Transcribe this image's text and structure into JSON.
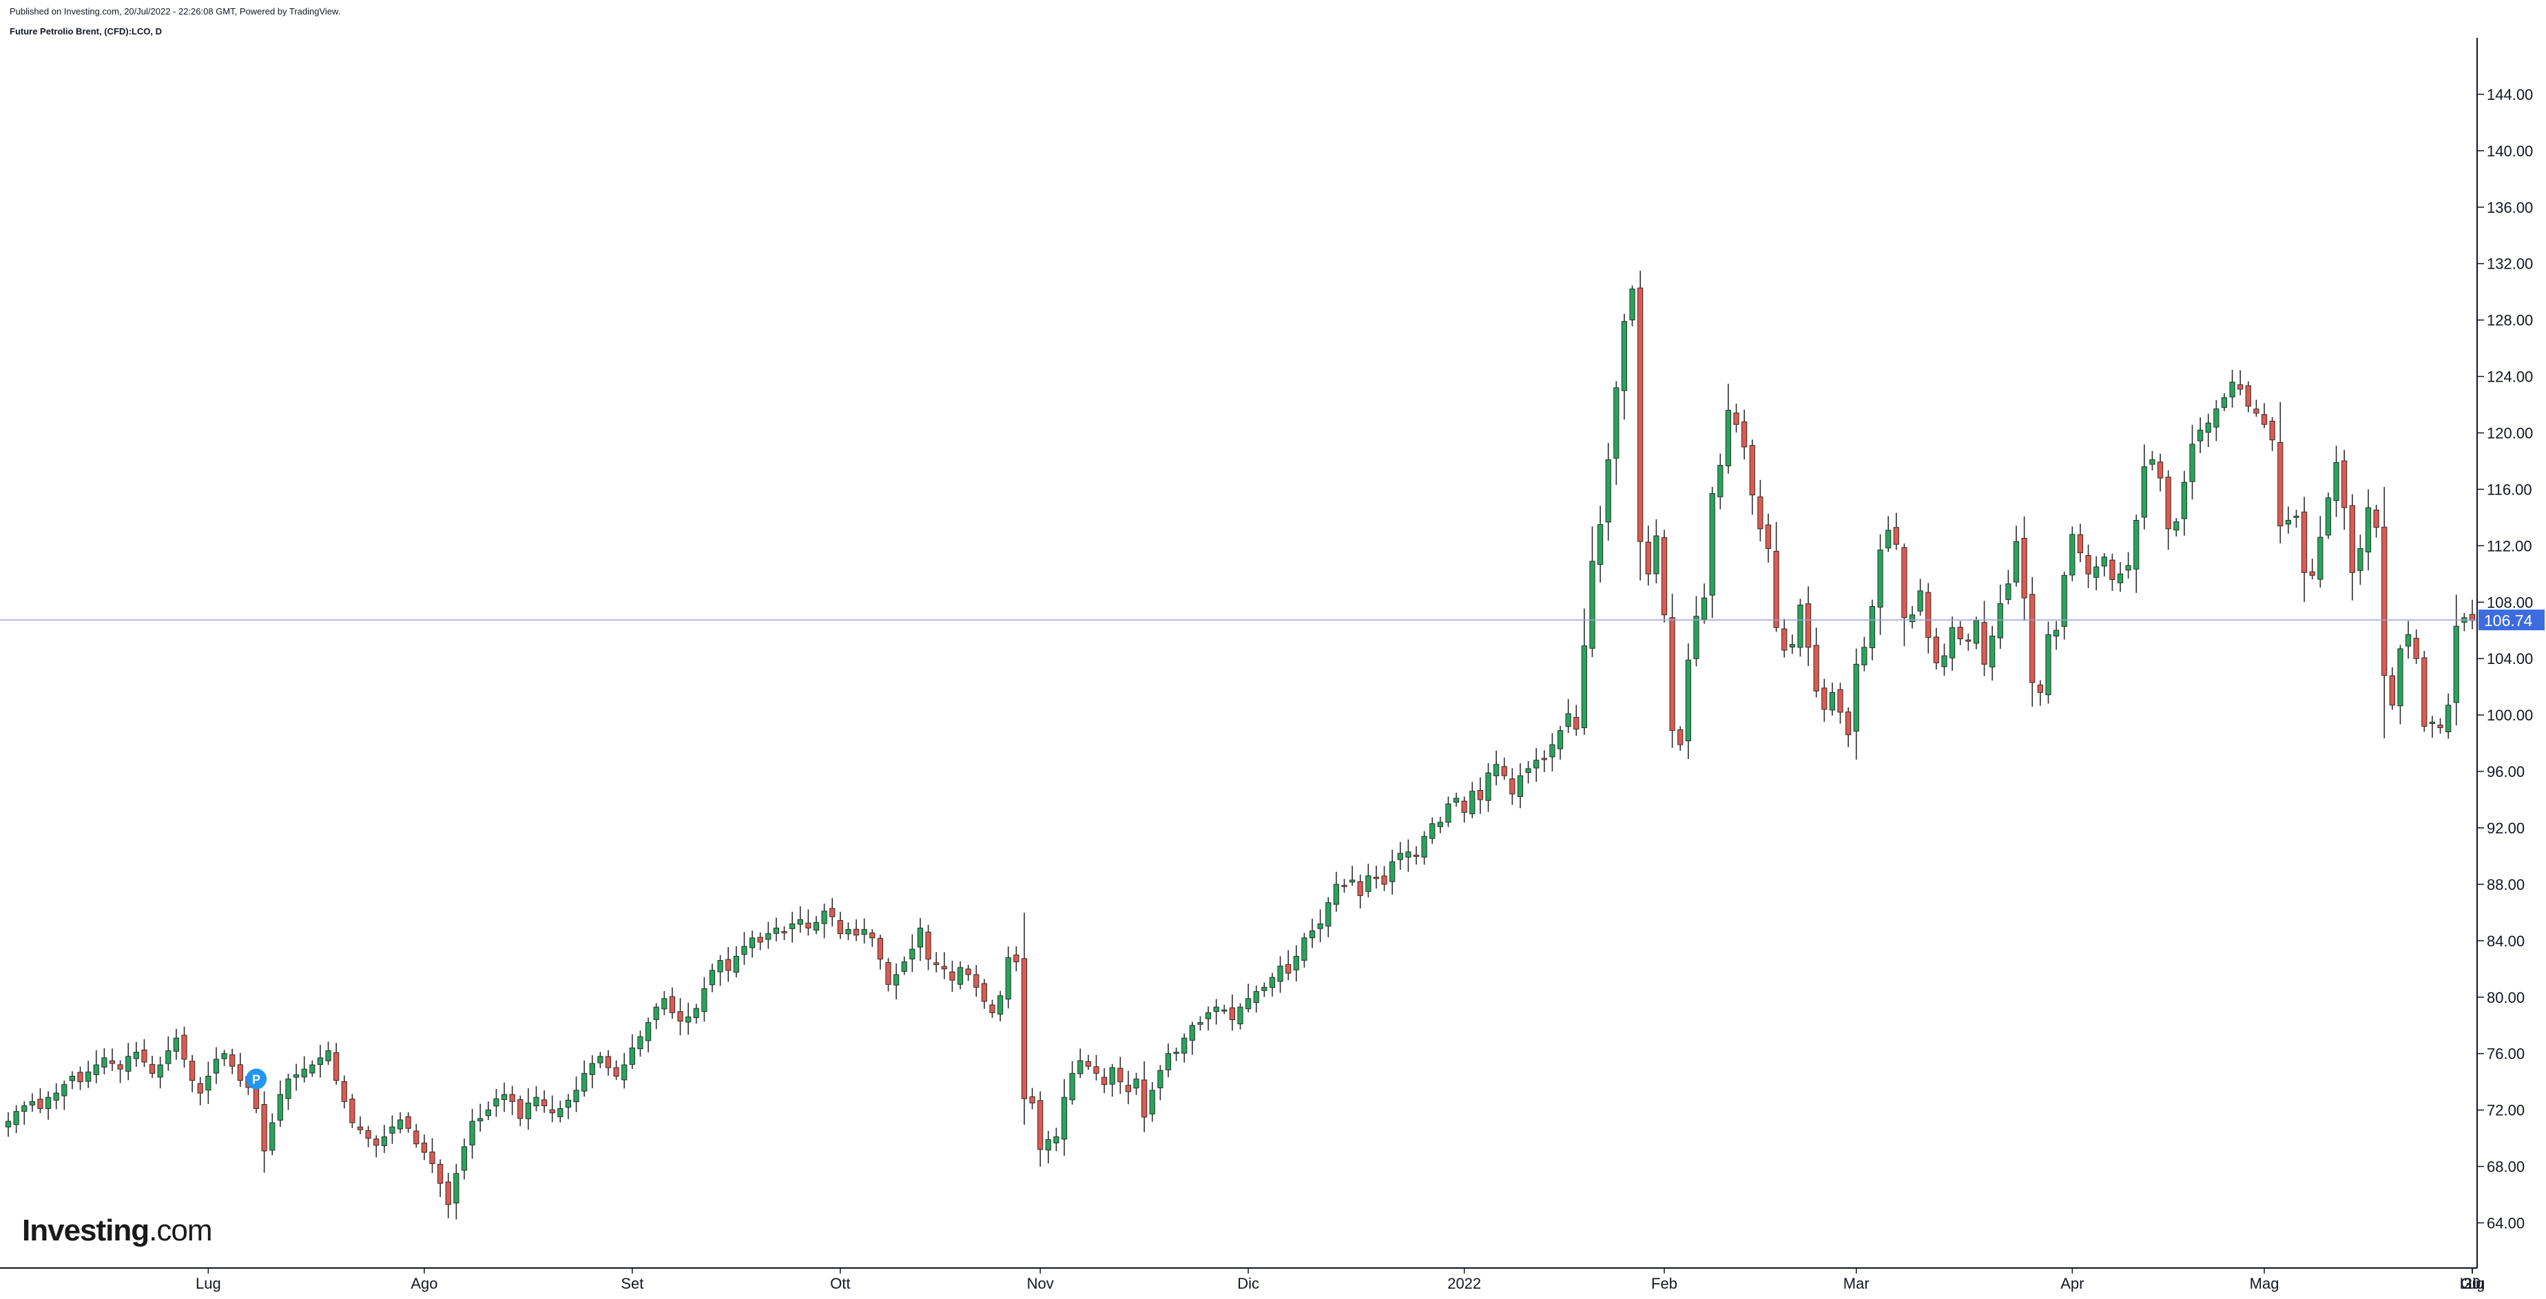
{
  "header": {
    "published": "Published on Investing.com, 20/Jul/2022 - 22:26:08 GMT, Powered by TradingView.",
    "symbol": "Future Petrolio Brent, (CFD):LCO, D"
  },
  "logo": {
    "brand": "Investing",
    "tld": ".com"
  },
  "colors": {
    "up": "#26a65b",
    "down": "#e05a4f",
    "wick": "#2d2d2d",
    "price_line": "#9aa3cf",
    "price_badge": "#3d6ce0",
    "axis": "#131722",
    "event_marker": "#2196f3"
  },
  "chart_data": {
    "type": "candlestick",
    "interval": "D",
    "ylim": [
      60.8,
      148.0
    ],
    "yticks": [
      "64.00",
      "68.00",
      "72.00",
      "76.00",
      "80.00",
      "84.00",
      "88.00",
      "92.00",
      "96.00",
      "100.00",
      "104.00",
      "108.00",
      "112.00",
      "116.00",
      "120.00",
      "124.00",
      "128.00",
      "132.00",
      "136.00",
      "140.00",
      "144.00"
    ],
    "xticks": [
      "Lug",
      "Ago",
      "Set",
      "Ott",
      "Nov",
      "Dic",
      "2022",
      "Feb",
      "Mar",
      "Apr",
      "Mag",
      "Giu",
      "Lug",
      "20"
    ],
    "last_price": "106.74",
    "event_marker": {
      "label": "P",
      "close": 74.2
    },
    "series": [
      {
        "closes": [
          71.2,
          71.9,
          72.3,
          72.6,
          72.1,
          72.9,
          73.2,
          73.8,
          74.4,
          74.0,
          74.7,
          75.2,
          75.7,
          75.3,
          74.9,
          75.8,
          76.1,
          75.4,
          74.6,
          75.2,
          76.2,
          77.1,
          75.6,
          74.1,
          73.2,
          74.4,
          75.6,
          76.0,
          75.1,
          74.1,
          73.6,
          72.1,
          69.1,
          71.1,
          73.1,
          74.2,
          74.5,
          74.9,
          75.2,
          75.7,
          76.2,
          74.1,
          72.6,
          71.1,
          70.6,
          70.0,
          69.5,
          70.1,
          70.8,
          71.3,
          70.7,
          69.6,
          69.0,
          68.2,
          66.8,
          65.3,
          67.5,
          69.4,
          71.2,
          71.4,
          72.0,
          72.8,
          73.1,
          72.6,
          71.4,
          72.5,
          72.9,
          72.3,
          71.8,
          72.1,
          72.7,
          73.4,
          74.6,
          75.3,
          75.8,
          75.0,
          74.4,
          75.2,
          76.4,
          77.2,
          78.2,
          79.3,
          79.9,
          78.9,
          78.3,
          78.6,
          79.2,
          80.6,
          81.9,
          82.6,
          81.9,
          82.9,
          83.6,
          84.2,
          83.9,
          84.5,
          84.9,
          84.6,
          85.2,
          85.5,
          84.9,
          85.3,
          86.1,
          85.7,
          84.5,
          84.8,
          84.4,
          84.8,
          84.2,
          82.7,
          80.9,
          81.6,
          82.5,
          83.4,
          84.9,
          82.7,
          82.3,
          82.0,
          81.2,
          82.1,
          81.6,
          80.7,
          79.7,
          78.9,
          80.1,
          82.8,
          82.5,
          72.8,
          72.5,
          69.2,
          69.9,
          70.1,
          72.9,
          74.6,
          75.5,
          75.1,
          74.6,
          73.8,
          75.0,
          74.0,
          73.3,
          74.2,
          71.5,
          73.4,
          74.8,
          76.0,
          76.1,
          77.1,
          78.0,
          78.2,
          78.9,
          79.3,
          79.1,
          78.4,
          79.3,
          79.9,
          80.4,
          80.7,
          81.4,
          82.2,
          81.7,
          82.9,
          84.2,
          84.7,
          85.2,
          86.7,
          88.0,
          87.9,
          88.3,
          87.2,
          88.6,
          88.4,
          88.0,
          89.6,
          90.2,
          90.3,
          90.0,
          91.4,
          92.3,
          92.4,
          93.7,
          94.1,
          93.1,
          94.6,
          94.0,
          95.9,
          96.5,
          95.7,
          94.4,
          95.7,
          96.2,
          96.8,
          96.9,
          97.9,
          98.9,
          100.1,
          99.0,
          104.9,
          110.9,
          113.5,
          118.1,
          123.2,
          127.9,
          130.2,
          112.3,
          110.0,
          112.7,
          107.1,
          98.9,
          97.9,
          103.9,
          107.0,
          108.3,
          115.7,
          117.7,
          121.6,
          120.6,
          119.0,
          115.6,
          113.2,
          111.8,
          106.2,
          104.6,
          105.0,
          107.8,
          104.8,
          101.7,
          100.4,
          101.6,
          100.2,
          98.6,
          103.6,
          104.8,
          107.7,
          111.7,
          113.1,
          112.1,
          106.9,
          107.1,
          108.8,
          105.5,
          103.7,
          104.2,
          106.2,
          105.4,
          105.3,
          106.7,
          103.6,
          105.6,
          107.9,
          109.3,
          112.3,
          108.3,
          102.3,
          101.6,
          105.7,
          106.0,
          109.9,
          112.8,
          111.5,
          110.0,
          110.5,
          111.2,
          109.6,
          110.0,
          110.6,
          113.8,
          117.6,
          118.1,
          116.8,
          113.2,
          113.7,
          116.5,
          119.2,
          120.2,
          120.7,
          121.7,
          122.5,
          123.6,
          123.1,
          121.9,
          121.4,
          120.6,
          119.5,
          113.4,
          113.8,
          114.1,
          110.1,
          109.9,
          112.6,
          115.4,
          117.9,
          114.7,
          110.1,
          111.8,
          114.7,
          113.3,
          102.8,
          100.7,
          104.7,
          105.7,
          104.0,
          99.2,
          99.5,
          99.1,
          100.7,
          106.3,
          106.9,
          106.7
        ]
      }
    ]
  }
}
